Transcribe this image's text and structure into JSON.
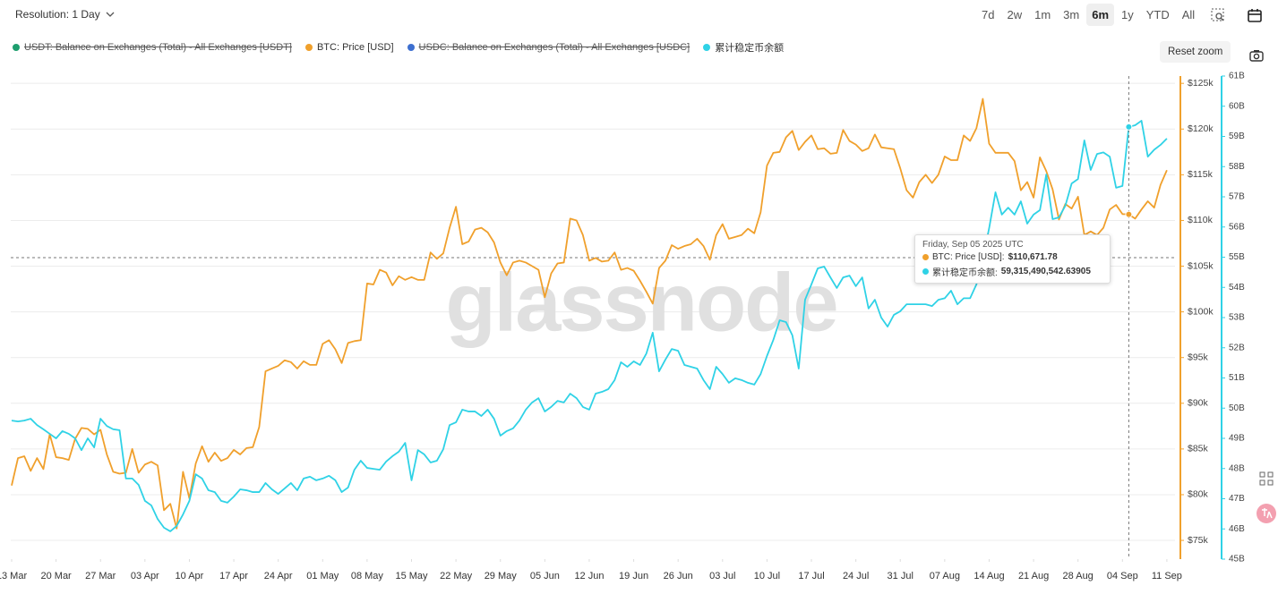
{
  "controls": {
    "resolution": "Resolution: 1 Day",
    "ranges": [
      "7d",
      "2w",
      "1m",
      "3m",
      "6m",
      "1y",
      "YTD",
      "All"
    ],
    "active_range": "6m",
    "reset_zoom": "Reset zoom"
  },
  "watermark": "glassnode",
  "tooltip": {
    "title": "Friday, Sep 05 2025 UTC",
    "items": [
      {
        "label": "BTC: Price [USD]:",
        "value": "$110,671.78"
      },
      {
        "label": "累计稳定币余额:",
        "value": "59,315,490,542.63905"
      }
    ]
  },
  "chart_data": {
    "type": "line",
    "x": [
      "2025-03-13",
      "2025-03-14",
      "2025-03-15",
      "2025-03-16",
      "2025-03-17",
      "2025-03-18",
      "2025-03-19",
      "2025-03-20",
      "2025-03-21",
      "2025-03-22",
      "2025-03-23",
      "2025-03-24",
      "2025-03-25",
      "2025-03-26",
      "2025-03-27",
      "2025-03-28",
      "2025-03-29",
      "2025-03-30",
      "2025-03-31",
      "2025-04-01",
      "2025-04-02",
      "2025-04-03",
      "2025-04-04",
      "2025-04-05",
      "2025-04-06",
      "2025-04-07",
      "2025-04-08",
      "2025-04-09",
      "2025-04-10",
      "2025-04-11",
      "2025-04-12",
      "2025-04-13",
      "2025-04-14",
      "2025-04-15",
      "2025-04-16",
      "2025-04-17",
      "2025-04-18",
      "2025-04-19",
      "2025-04-20",
      "2025-04-21",
      "2025-04-22",
      "2025-04-23",
      "2025-04-24",
      "2025-04-25",
      "2025-04-26",
      "2025-04-27",
      "2025-04-28",
      "2025-04-29",
      "2025-04-30",
      "2025-05-01",
      "2025-05-02",
      "2025-05-03",
      "2025-05-04",
      "2025-05-05",
      "2025-05-06",
      "2025-05-07",
      "2025-05-08",
      "2025-05-09",
      "2025-05-10",
      "2025-05-11",
      "2025-05-12",
      "2025-05-13",
      "2025-05-14",
      "2025-05-15",
      "2025-05-16",
      "2025-05-17",
      "2025-05-18",
      "2025-05-19",
      "2025-05-20",
      "2025-05-21",
      "2025-05-22",
      "2025-05-23",
      "2025-05-24",
      "2025-05-25",
      "2025-05-26",
      "2025-05-27",
      "2025-05-28",
      "2025-05-29",
      "2025-05-30",
      "2025-05-31",
      "2025-06-01",
      "2025-06-02",
      "2025-06-03",
      "2025-06-04",
      "2025-06-05",
      "2025-06-06",
      "2025-06-07",
      "2025-06-08",
      "2025-06-09",
      "2025-06-10",
      "2025-06-11",
      "2025-06-12",
      "2025-06-13",
      "2025-06-14",
      "2025-06-15",
      "2025-06-16",
      "2025-06-17",
      "2025-06-18",
      "2025-06-19",
      "2025-06-20",
      "2025-06-21",
      "2025-06-22",
      "2025-06-23",
      "2025-06-24",
      "2025-06-25",
      "2025-06-26",
      "2025-06-27",
      "2025-06-28",
      "2025-06-29",
      "2025-06-30",
      "2025-07-01",
      "2025-07-02",
      "2025-07-03",
      "2025-07-04",
      "2025-07-05",
      "2025-07-06",
      "2025-07-07",
      "2025-07-08",
      "2025-07-09",
      "2025-07-10",
      "2025-07-11",
      "2025-07-12",
      "2025-07-13",
      "2025-07-14",
      "2025-07-15",
      "2025-07-16",
      "2025-07-17",
      "2025-07-18",
      "2025-07-19",
      "2025-07-20",
      "2025-07-21",
      "2025-07-22",
      "2025-07-23",
      "2025-07-24",
      "2025-07-25",
      "2025-07-26",
      "2025-07-27",
      "2025-07-28",
      "2025-07-29",
      "2025-07-30",
      "2025-07-31",
      "2025-08-01",
      "2025-08-02",
      "2025-08-03",
      "2025-08-04",
      "2025-08-05",
      "2025-08-06",
      "2025-08-07",
      "2025-08-08",
      "2025-08-09",
      "2025-08-10",
      "2025-08-11",
      "2025-08-12",
      "2025-08-13",
      "2025-08-14",
      "2025-08-15",
      "2025-08-16",
      "2025-08-17",
      "2025-08-18",
      "2025-08-19",
      "2025-08-20",
      "2025-08-21",
      "2025-08-22",
      "2025-08-23",
      "2025-08-24",
      "2025-08-25",
      "2025-08-26",
      "2025-08-27",
      "2025-08-28",
      "2025-08-29",
      "2025-08-30",
      "2025-08-31",
      "2025-09-01",
      "2025-09-02",
      "2025-09-03",
      "2025-09-04",
      "2025-09-05",
      "2025-09-06",
      "2025-09-07",
      "2025-09-08",
      "2025-09-09",
      "2025-09-10",
      "2025-09-11"
    ],
    "xlim": [
      "2025-03-13",
      "2025-09-12"
    ],
    "xticks": [
      {
        "value": "2025-03-13",
        "label": "13 Mar"
      },
      {
        "value": "2025-03-20",
        "label": "20 Mar"
      },
      {
        "value": "2025-03-27",
        "label": "27 Mar"
      },
      {
        "value": "2025-04-03",
        "label": "03 Apr"
      },
      {
        "value": "2025-04-10",
        "label": "10 Apr"
      },
      {
        "value": "2025-04-17",
        "label": "17 Apr"
      },
      {
        "value": "2025-04-24",
        "label": "24 Apr"
      },
      {
        "value": "2025-05-01",
        "label": "01 May"
      },
      {
        "value": "2025-05-08",
        "label": "08 May"
      },
      {
        "value": "2025-05-15",
        "label": "15 May"
      },
      {
        "value": "2025-05-22",
        "label": "22 May"
      },
      {
        "value": "2025-05-29",
        "label": "29 May"
      },
      {
        "value": "2025-06-05",
        "label": "05 Jun"
      },
      {
        "value": "2025-06-12",
        "label": "12 Jun"
      },
      {
        "value": "2025-06-19",
        "label": "19 Jun"
      },
      {
        "value": "2025-06-26",
        "label": "26 Jun"
      },
      {
        "value": "2025-07-03",
        "label": "03 Jul"
      },
      {
        "value": "2025-07-10",
        "label": "10 Jul"
      },
      {
        "value": "2025-07-17",
        "label": "17 Jul"
      },
      {
        "value": "2025-07-24",
        "label": "24 Jul"
      },
      {
        "value": "2025-07-31",
        "label": "31 Jul"
      },
      {
        "value": "2025-08-07",
        "label": "07 Aug"
      },
      {
        "value": "2025-08-14",
        "label": "14 Aug"
      },
      {
        "value": "2025-08-21",
        "label": "21 Aug"
      },
      {
        "value": "2025-08-28",
        "label": "28 Aug"
      },
      {
        "value": "2025-09-04",
        "label": "04 Sep"
      },
      {
        "value": "2025-09-11",
        "label": "11 Sep"
      }
    ],
    "ylim": [
      72950,
      125800
    ],
    "yticks": [
      {
        "value": 75000,
        "label": "$75k"
      },
      {
        "value": 80000,
        "label": "$80k"
      },
      {
        "value": 85000,
        "label": "$85k"
      },
      {
        "value": 90000,
        "label": "$90k"
      },
      {
        "value": 95000,
        "label": "$95k"
      },
      {
        "value": 100000,
        "label": "$100k"
      },
      {
        "value": 105000,
        "label": "$105k"
      },
      {
        "value": 110000,
        "label": "$110k"
      },
      {
        "value": 115000,
        "label": "$115k"
      },
      {
        "value": 120000,
        "label": "$120k"
      },
      {
        "value": 125000,
        "label": "$125k"
      }
    ],
    "y2lim": [
      45,
      61
    ],
    "y2ticks": [
      {
        "value": 45,
        "label": "45B"
      },
      {
        "value": 46,
        "label": "46B"
      },
      {
        "value": 47,
        "label": "47B"
      },
      {
        "value": 48,
        "label": "48B"
      },
      {
        "value": 49,
        "label": "49B"
      },
      {
        "value": 50,
        "label": "50B"
      },
      {
        "value": 51,
        "label": "51B"
      },
      {
        "value": 52,
        "label": "52B"
      },
      {
        "value": 53,
        "label": "53B"
      },
      {
        "value": 54,
        "label": "54B"
      },
      {
        "value": 55,
        "label": "55B"
      },
      {
        "value": 56,
        "label": "56B"
      },
      {
        "value": 57,
        "label": "57B"
      },
      {
        "value": 58,
        "label": "58B"
      },
      {
        "value": 59,
        "label": "59B"
      },
      {
        "value": 60,
        "label": "60B"
      },
      {
        "value": 61,
        "label": "61B"
      }
    ],
    "grid": true,
    "series": [
      {
        "name": "USDT: Balance on Exchanges (Total) - All Exchanges [USDT]",
        "color": "#1e9e6e",
        "hidden": true
      },
      {
        "name": "BTC: Price [USD]",
        "color": "#f0a02c",
        "values": [
          81000,
          84000,
          84200,
          82600,
          84000,
          82800,
          86600,
          84100,
          84000,
          83800,
          86100,
          87300,
          87200,
          86600,
          87100,
          84400,
          82500,
          82300,
          82400,
          85000,
          82400,
          83300,
          83600,
          83200,
          78300,
          79000,
          76300,
          82500,
          79600,
          83400,
          85300,
          83600,
          84600,
          83700,
          84000,
          84900,
          84400,
          85100,
          85200,
          87400,
          93500,
          93800,
          94100,
          94700,
          94500,
          93800,
          94600,
          94200,
          94200,
          96500,
          96900,
          95900,
          94400,
          96600,
          96800,
          96900,
          103100,
          103000,
          104600,
          104300,
          102900,
          103900,
          103500,
          103800,
          103500,
          103500,
          106500,
          105800,
          106400,
          109200,
          111500,
          107400,
          107700,
          109000,
          109200,
          108700,
          107600,
          105400,
          104000,
          105400,
          105600,
          105400,
          105000,
          104600,
          101600,
          104200,
          105300,
          105400,
          110200,
          110000,
          108400,
          105600,
          105900,
          105500,
          105600,
          106500,
          104600,
          104800,
          104500,
          103400,
          102200,
          100900,
          104800,
          105600,
          107300,
          106900,
          107200,
          107400,
          108000,
          107200,
          105700,
          108400,
          109600,
          108000,
          108200,
          108400,
          109100,
          108600,
          110900,
          116000,
          117400,
          117500,
          119100,
          119800,
          117700,
          118600,
          119300,
          117800,
          117900,
          117300,
          117400,
          119900,
          118700,
          118300,
          117600,
          117900,
          119400,
          118000,
          117900,
          117800,
          115700,
          113300,
          112500,
          114200,
          115000,
          114100,
          115000,
          117000,
          116600,
          116600,
          119300,
          118700,
          120100,
          123300,
          118400,
          117400,
          117400,
          117400,
          116500,
          113300,
          114200,
          112500,
          116900,
          115400,
          113400,
          110100,
          111800,
          111300,
          112600,
          108400,
          108800,
          108400,
          109200,
          111200,
          111700,
          110700,
          110671.78,
          110200,
          111200,
          112100,
          111400,
          113900,
          115500
        ]
      },
      {
        "name": "USDC: Balance on Exchanges (Total) - All Exchanges [USDC]",
        "color": "#3d6fd0",
        "hidden": true
      },
      {
        "name": "累计稳定币余额",
        "color": "#2fd2e6",
        "axis": "y2",
        "values": [
          49.59,
          49.56,
          49.59,
          49.65,
          49.44,
          49.3,
          49.15,
          49.0,
          49.24,
          49.15,
          49.0,
          48.61,
          49.0,
          48.7,
          49.65,
          49.41,
          49.3,
          49.27,
          47.67,
          47.67,
          47.46,
          46.93,
          46.78,
          46.33,
          46.04,
          45.92,
          46.1,
          46.48,
          46.93,
          47.81,
          47.67,
          47.28,
          47.22,
          46.93,
          46.87,
          47.07,
          47.31,
          47.28,
          47.22,
          47.22,
          47.52,
          47.31,
          47.16,
          47.34,
          47.52,
          47.28,
          47.67,
          47.73,
          47.61,
          47.67,
          47.76,
          47.61,
          47.22,
          47.37,
          47.96,
          48.26,
          48.02,
          47.99,
          47.96,
          48.23,
          48.41,
          48.56,
          48.85,
          47.61,
          48.61,
          48.47,
          48.2,
          48.26,
          48.64,
          49.44,
          49.53,
          49.95,
          49.89,
          49.89,
          49.74,
          49.95,
          49.65,
          49.09,
          49.24,
          49.33,
          49.59,
          49.95,
          50.19,
          50.33,
          49.89,
          50.04,
          50.24,
          50.19,
          50.48,
          50.33,
          50.04,
          49.95,
          50.48,
          50.54,
          50.63,
          50.93,
          51.52,
          51.37,
          51.55,
          51.43,
          51.81,
          52.5,
          51.22,
          51.61,
          51.96,
          51.9,
          51.43,
          51.37,
          51.31,
          50.93,
          50.63,
          51.37,
          51.13,
          50.84,
          50.99,
          50.93,
          50.84,
          50.78,
          51.13,
          51.73,
          52.26,
          52.91,
          52.85,
          52.41,
          51.31,
          53.59,
          54.1,
          54.63,
          54.69,
          54.33,
          53.98,
          54.33,
          54.39,
          54.04,
          54.33,
          53.3,
          53.59,
          53.0,
          52.7,
          53.09,
          53.21,
          53.44,
          53.44,
          53.44,
          53.44,
          53.38,
          53.59,
          53.64,
          53.89,
          53.44,
          53.64,
          53.64,
          54.1,
          54.93,
          55.96,
          57.15,
          56.41,
          56.64,
          56.41,
          56.85,
          56.11,
          56.41,
          56.56,
          57.74,
          56.26,
          56.32,
          56.7,
          57.44,
          57.59,
          58.87,
          57.89,
          58.42,
          58.47,
          58.33,
          57.3,
          57.36,
          59.31549054263905,
          59.37,
          59.52,
          58.33,
          58.56,
          58.72,
          58.93
        ]
      }
    ]
  }
}
